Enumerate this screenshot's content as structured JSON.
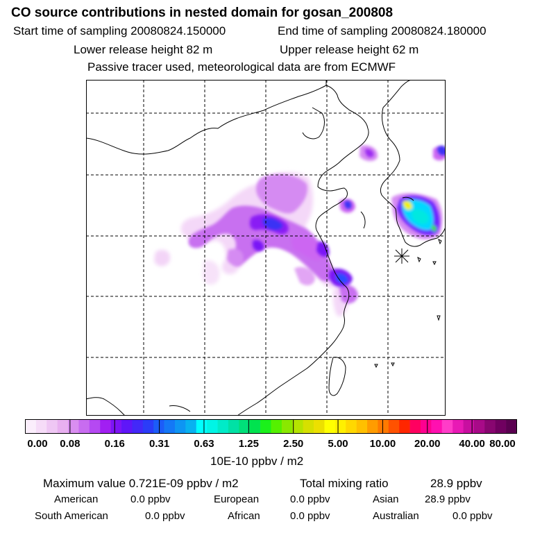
{
  "header": {
    "title": "CO  source contributions in nested domain for gosan_200808",
    "start_label": "Start time of sampling 20080824.150000",
    "end_label": "End time of sampling 20080824.180000",
    "lower_height": "Lower release height   82 m",
    "upper_height": "Upper release height   62 m",
    "tracer_note": "Passive tracer used, meteorological data are from ECMWF"
  },
  "colorbar": {
    "ticks": [
      "0.00",
      "0.08",
      "0.16",
      "0.31",
      "0.63",
      "1.25",
      "2.50",
      "5.00",
      "10.00",
      "20.00",
      "40.00",
      "80.00"
    ],
    "unit": "10E-10 ppbv / m2",
    "colors": [
      "#fbeefc",
      "#f6dcf8",
      "#efc7f4",
      "#e8b0f0",
      "#d98ef0",
      "#c86cf0",
      "#b549f2",
      "#a11ff2",
      "#7d14f5",
      "#5f16f8",
      "#4328f8",
      "#2b3cf8",
      "#1c5cf8",
      "#1478f6",
      "#0e95f3",
      "#08b2f0",
      "#00ffff",
      "#00f5e6",
      "#00ebc8",
      "#00e1a5",
      "#00e07a",
      "#00e34f",
      "#1bf01b",
      "#55f000",
      "#8ae800",
      "#b5e400",
      "#d6e000",
      "#ece000",
      "#ffff00",
      "#fff000",
      "#ffd800",
      "#ffc000",
      "#ff9c00",
      "#ff7a00",
      "#ff5200",
      "#ff2600",
      "#ff0060",
      "#ff0090",
      "#ff10b0",
      "#ff3cc8",
      "#e81ab5",
      "#c80fa0",
      "#a80a88",
      "#880670",
      "#700060",
      "#5a0050"
    ]
  },
  "stats": {
    "max_label": "Maximum value  0.721E-09 ppbv / m2",
    "total_label": "Total mixing ratio",
    "total_value": "28.9 ppbv",
    "regions": [
      {
        "name": "American",
        "value": "0.0 ppbv"
      },
      {
        "name": "European",
        "value": "0.0 ppbv"
      },
      {
        "name": "Asian",
        "value": "28.9 ppbv"
      },
      {
        "name": "South American",
        "value": "0.0 ppbv"
      },
      {
        "name": "African",
        "value": "0.0 ppbv"
      },
      {
        "name": "Australian",
        "value": "0.0 ppbv"
      }
    ]
  },
  "palette": {
    "light": "#f3d4f7",
    "pink": "#e6a6f5",
    "magenta": "#cc66ff",
    "violet": "#9b1dff",
    "purple": "#6a22ff",
    "blue": "#2a4cff",
    "cyan": "#00e5ff",
    "teal": "#00c8b4",
    "yellow": "#ffff00",
    "green": "#40e000"
  }
}
